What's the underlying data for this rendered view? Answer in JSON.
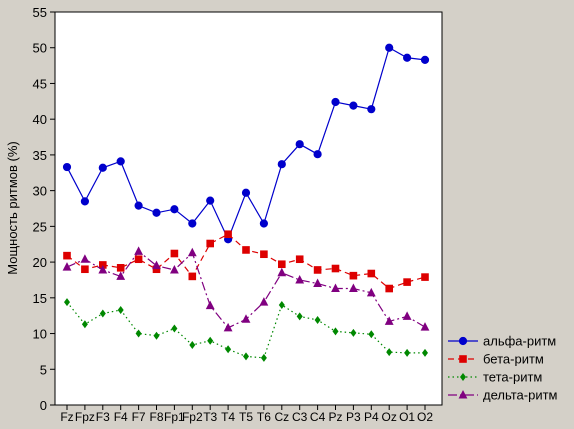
{
  "chart_data": {
    "type": "line",
    "title": "",
    "xlabel": "",
    "ylabel": "Мощность ритмов (%)",
    "ylim": [
      0,
      55
    ],
    "yticks": [
      0,
      5,
      10,
      15,
      20,
      25,
      30,
      35,
      40,
      45,
      50,
      55
    ],
    "grid": false,
    "legend_position": "right",
    "categories": [
      "Fz",
      "Fpz",
      "F3",
      "F4",
      "F7",
      "F8",
      "Fp1",
      "Fp2",
      "T3",
      "T4",
      "T5",
      "T6",
      "Cz",
      "C3",
      "C4",
      "Pz",
      "P3",
      "P4",
      "Oz",
      "O1",
      "O2"
    ],
    "series": [
      {
        "name": "альфа-ритм",
        "color": "#0000cc",
        "marker": "circle",
        "dash": "solid",
        "values": [
          33.3,
          28.5,
          33.2,
          34.1,
          27.9,
          26.9,
          27.4,
          25.4,
          28.6,
          23.2,
          29.7,
          25.4,
          33.7,
          36.5,
          35.1,
          42.4,
          41.9,
          41.4,
          50.0,
          48.6,
          48.3
        ]
      },
      {
        "name": "бета-ритм",
        "color": "#dd0000",
        "marker": "square",
        "dash": "dashed",
        "values": [
          20.9,
          19.0,
          19.6,
          19.2,
          20.4,
          19.0,
          21.2,
          18.0,
          22.6,
          23.9,
          21.7,
          21.1,
          19.7,
          20.4,
          18.9,
          19.1,
          18.1,
          18.4,
          16.3,
          17.2,
          17.9
        ]
      },
      {
        "name": "тета-ритм",
        "color": "#008800",
        "marker": "diamond",
        "dash": "dotted",
        "values": [
          14.4,
          11.3,
          12.8,
          13.3,
          10.0,
          9.7,
          10.7,
          8.4,
          9.0,
          7.8,
          6.8,
          6.6,
          14.0,
          12.4,
          11.9,
          10.3,
          10.1,
          9.9,
          7.4,
          7.3,
          7.3
        ]
      },
      {
        "name": "дельта-ритм",
        "color": "#800080",
        "marker": "triangle",
        "dash": "dashdot",
        "values": [
          19.3,
          20.4,
          18.9,
          18.0,
          21.5,
          19.5,
          18.9,
          21.3,
          13.9,
          10.8,
          12.0,
          14.4,
          18.5,
          17.5,
          17.0,
          16.3,
          16.3,
          15.7,
          11.7,
          12.4,
          10.9
        ]
      }
    ]
  }
}
